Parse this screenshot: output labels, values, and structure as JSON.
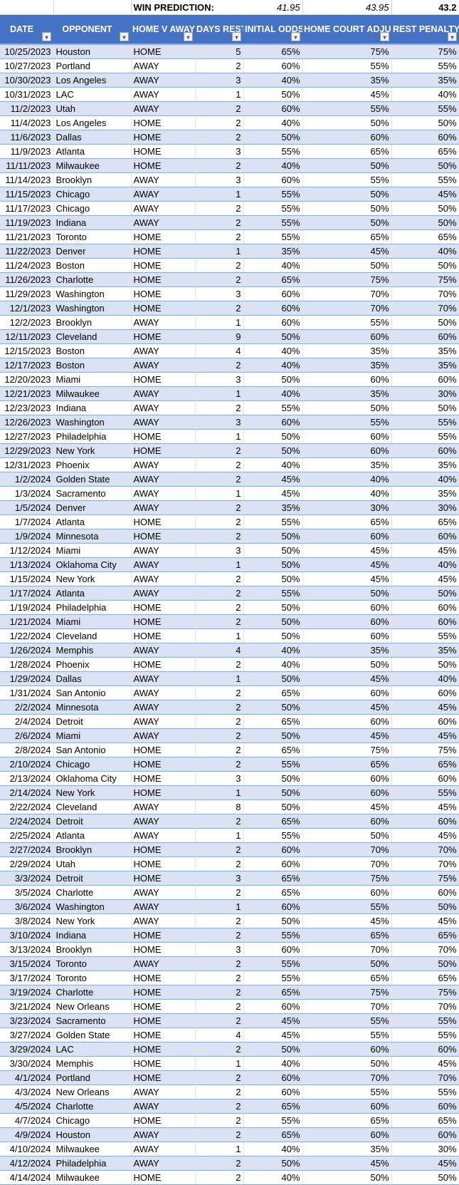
{
  "prediction": {
    "label": "WIN PREDICTION:",
    "initial_odds": "41.95",
    "home_court_adjusted": "43.95",
    "rest_penalty": "43.2"
  },
  "columns": [
    "DATE",
    "OPPONENT",
    "HOME V AWAY",
    "DAYS REST",
    "INITIAL ODDS",
    "HOME COURT ADJUSTED",
    "REST PENALTY"
  ],
  "colors": {
    "header_bg": "#4472C4",
    "band": "#D9E1F2",
    "border": "#8EA9DB"
  },
  "rows": [
    [
      "10/25/2023",
      "Houston",
      "HOME",
      "5",
      "65%",
      "75%",
      "75%"
    ],
    [
      "10/27/2023",
      "Portland",
      "AWAY",
      "2",
      "60%",
      "55%",
      "55%"
    ],
    [
      "10/30/2023",
      "Los Angeles",
      "AWAY",
      "3",
      "40%",
      "35%",
      "35%"
    ],
    [
      "10/31/2023",
      "LAC",
      "AWAY",
      "1",
      "50%",
      "45%",
      "40%"
    ],
    [
      "11/2/2023",
      "Utah",
      "AWAY",
      "2",
      "60%",
      "55%",
      "55%"
    ],
    [
      "11/4/2023",
      "Los Angeles",
      "HOME",
      "2",
      "40%",
      "50%",
      "50%"
    ],
    [
      "11/6/2023",
      "Dallas",
      "HOME",
      "2",
      "50%",
      "60%",
      "60%"
    ],
    [
      "11/9/2023",
      "Atlanta",
      "HOME",
      "3",
      "55%",
      "65%",
      "65%"
    ],
    [
      "11/11/2023",
      "Milwaukee",
      "HOME",
      "2",
      "40%",
      "50%",
      "50%"
    ],
    [
      "11/14/2023",
      "Brooklyn",
      "AWAY",
      "3",
      "60%",
      "55%",
      "55%"
    ],
    [
      "11/15/2023",
      "Chicago",
      "AWAY",
      "1",
      "55%",
      "50%",
      "45%"
    ],
    [
      "11/17/2023",
      "Chicago",
      "AWAY",
      "2",
      "55%",
      "50%",
      "50%"
    ],
    [
      "11/19/2023",
      "Indiana",
      "AWAY",
      "2",
      "55%",
      "50%",
      "50%"
    ],
    [
      "11/21/2023",
      "Toronto",
      "HOME",
      "2",
      "55%",
      "65%",
      "65%"
    ],
    [
      "11/22/2023",
      "Denver",
      "HOME",
      "1",
      "35%",
      "45%",
      "40%"
    ],
    [
      "11/24/2023",
      "Boston",
      "HOME",
      "2",
      "40%",
      "50%",
      "50%"
    ],
    [
      "11/26/2023",
      "Charlotte",
      "HOME",
      "2",
      "65%",
      "75%",
      "75%"
    ],
    [
      "11/29/2023",
      "Washington",
      "HOME",
      "3",
      "60%",
      "70%",
      "70%"
    ],
    [
      "12/1/2023",
      "Washington",
      "HOME",
      "2",
      "60%",
      "70%",
      "70%"
    ],
    [
      "12/2/2023",
      "Brooklyn",
      "AWAY",
      "1",
      "60%",
      "55%",
      "50%"
    ],
    [
      "12/11/2023",
      "Cleveland",
      "HOME",
      "9",
      "50%",
      "60%",
      "60%"
    ],
    [
      "12/15/2023",
      "Boston",
      "AWAY",
      "4",
      "40%",
      "35%",
      "35%"
    ],
    [
      "12/17/2023",
      "Boston",
      "AWAY",
      "2",
      "40%",
      "35%",
      "35%"
    ],
    [
      "12/20/2023",
      "Miami",
      "HOME",
      "3",
      "50%",
      "60%",
      "60%"
    ],
    [
      "12/21/2023",
      "Milwaukee",
      "AWAY",
      "1",
      "40%",
      "35%",
      "30%"
    ],
    [
      "12/23/2023",
      "Indiana",
      "AWAY",
      "2",
      "55%",
      "50%",
      "50%"
    ],
    [
      "12/26/2023",
      "Washington",
      "AWAY",
      "3",
      "60%",
      "55%",
      "55%"
    ],
    [
      "12/27/2023",
      "Philadelphia",
      "HOME",
      "1",
      "50%",
      "60%",
      "55%"
    ],
    [
      "12/29/2023",
      "New York",
      "HOME",
      "2",
      "50%",
      "60%",
      "60%"
    ],
    [
      "12/31/2023",
      "Phoenix",
      "AWAY",
      "2",
      "40%",
      "35%",
      "35%"
    ],
    [
      "1/2/2024",
      "Golden State",
      "AWAY",
      "2",
      "45%",
      "40%",
      "40%"
    ],
    [
      "1/3/2024",
      "Sacramento",
      "AWAY",
      "1",
      "45%",
      "40%",
      "35%"
    ],
    [
      "1/5/2024",
      "Denver",
      "AWAY",
      "2",
      "35%",
      "30%",
      "30%"
    ],
    [
      "1/7/2024",
      "Atlanta",
      "HOME",
      "2",
      "55%",
      "65%",
      "65%"
    ],
    [
      "1/9/2024",
      "Minnesota",
      "HOME",
      "2",
      "50%",
      "60%",
      "60%"
    ],
    [
      "1/12/2024",
      "Miami",
      "AWAY",
      "3",
      "50%",
      "45%",
      "45%"
    ],
    [
      "1/13/2024",
      "Oklahoma City",
      "AWAY",
      "1",
      "50%",
      "45%",
      "40%"
    ],
    [
      "1/15/2024",
      "New York",
      "AWAY",
      "2",
      "50%",
      "45%",
      "45%"
    ],
    [
      "1/17/2024",
      "Atlanta",
      "AWAY",
      "2",
      "55%",
      "50%",
      "50%"
    ],
    [
      "1/19/2024",
      "Philadelphia",
      "HOME",
      "2",
      "50%",
      "60%",
      "60%"
    ],
    [
      "1/21/2024",
      "Miami",
      "HOME",
      "2",
      "50%",
      "60%",
      "60%"
    ],
    [
      "1/22/2024",
      "Cleveland",
      "HOME",
      "1",
      "50%",
      "60%",
      "55%"
    ],
    [
      "1/26/2024",
      "Memphis",
      "AWAY",
      "4",
      "40%",
      "35%",
      "35%"
    ],
    [
      "1/28/2024",
      "Phoenix",
      "HOME",
      "2",
      "40%",
      "50%",
      "50%"
    ],
    [
      "1/29/2024",
      "Dallas",
      "AWAY",
      "1",
      "50%",
      "45%",
      "40%"
    ],
    [
      "1/31/2024",
      "San Antonio",
      "AWAY",
      "2",
      "65%",
      "60%",
      "60%"
    ],
    [
      "2/2/2024",
      "Minnesota",
      "AWAY",
      "2",
      "50%",
      "45%",
      "45%"
    ],
    [
      "2/4/2024",
      "Detroit",
      "AWAY",
      "2",
      "65%",
      "60%",
      "60%"
    ],
    [
      "2/6/2024",
      "Miami",
      "AWAY",
      "2",
      "50%",
      "45%",
      "45%"
    ],
    [
      "2/8/2024",
      "San Antonio",
      "HOME",
      "2",
      "65%",
      "75%",
      "75%"
    ],
    [
      "2/10/2024",
      "Chicago",
      "HOME",
      "2",
      "55%",
      "65%",
      "65%"
    ],
    [
      "2/13/2024",
      "Oklahoma City",
      "HOME",
      "3",
      "50%",
      "60%",
      "60%"
    ],
    [
      "2/14/2024",
      "New York",
      "HOME",
      "1",
      "50%",
      "60%",
      "55%"
    ],
    [
      "2/22/2024",
      "Cleveland",
      "AWAY",
      "8",
      "50%",
      "45%",
      "45%"
    ],
    [
      "2/24/2024",
      "Detroit",
      "AWAY",
      "2",
      "65%",
      "60%",
      "60%"
    ],
    [
      "2/25/2024",
      "Atlanta",
      "AWAY",
      "1",
      "55%",
      "50%",
      "45%"
    ],
    [
      "2/27/2024",
      "Brooklyn",
      "HOME",
      "2",
      "60%",
      "70%",
      "70%"
    ],
    [
      "2/29/2024",
      "Utah",
      "HOME",
      "2",
      "60%",
      "70%",
      "70%"
    ],
    [
      "3/3/2024",
      "Detroit",
      "HOME",
      "3",
      "65%",
      "75%",
      "75%"
    ],
    [
      "3/5/2024",
      "Charlotte",
      "AWAY",
      "2",
      "65%",
      "60%",
      "60%"
    ],
    [
      "3/6/2024",
      "Washington",
      "AWAY",
      "1",
      "60%",
      "55%",
      "50%"
    ],
    [
      "3/8/2024",
      "New York",
      "AWAY",
      "2",
      "50%",
      "45%",
      "45%"
    ],
    [
      "3/10/2024",
      "Indiana",
      "HOME",
      "2",
      "55%",
      "65%",
      "65%"
    ],
    [
      "3/13/2024",
      "Brooklyn",
      "HOME",
      "3",
      "60%",
      "70%",
      "70%"
    ],
    [
      "3/15/2024",
      "Toronto",
      "AWAY",
      "2",
      "55%",
      "50%",
      "50%"
    ],
    [
      "3/17/2024",
      "Toronto",
      "HOME",
      "2",
      "55%",
      "65%",
      "65%"
    ],
    [
      "3/19/2024",
      "Charlotte",
      "HOME",
      "2",
      "65%",
      "75%",
      "75%"
    ],
    [
      "3/21/2024",
      "New Orleans",
      "HOME",
      "2",
      "60%",
      "70%",
      "70%"
    ],
    [
      "3/23/2024",
      "Sacramento",
      "HOME",
      "2",
      "45%",
      "55%",
      "55%"
    ],
    [
      "3/27/2024",
      "Golden State",
      "HOME",
      "4",
      "45%",
      "55%",
      "55%"
    ],
    [
      "3/29/2024",
      "LAC",
      "HOME",
      "2",
      "50%",
      "60%",
      "60%"
    ],
    [
      "3/30/2024",
      "Memphis",
      "HOME",
      "1",
      "40%",
      "50%",
      "45%"
    ],
    [
      "4/1/2024",
      "Portland",
      "HOME",
      "2",
      "60%",
      "70%",
      "70%"
    ],
    [
      "4/3/2024",
      "New Orleans",
      "AWAY",
      "2",
      "60%",
      "55%",
      "55%"
    ],
    [
      "4/5/2024",
      "Charlotte",
      "AWAY",
      "2",
      "65%",
      "60%",
      "60%"
    ],
    [
      "4/7/2024",
      "Chicago",
      "HOME",
      "2",
      "55%",
      "65%",
      "65%"
    ],
    [
      "4/9/2024",
      "Houston",
      "AWAY",
      "2",
      "65%",
      "60%",
      "60%"
    ],
    [
      "4/10/2024",
      "Milwaukee",
      "AWAY",
      "1",
      "40%",
      "35%",
      "30%"
    ],
    [
      "4/12/2024",
      "Philadelphia",
      "AWAY",
      "2",
      "50%",
      "45%",
      "45%"
    ],
    [
      "4/14/2024",
      "Milwaukee",
      "HOME",
      "2",
      "40%",
      "50%",
      "50%"
    ]
  ]
}
